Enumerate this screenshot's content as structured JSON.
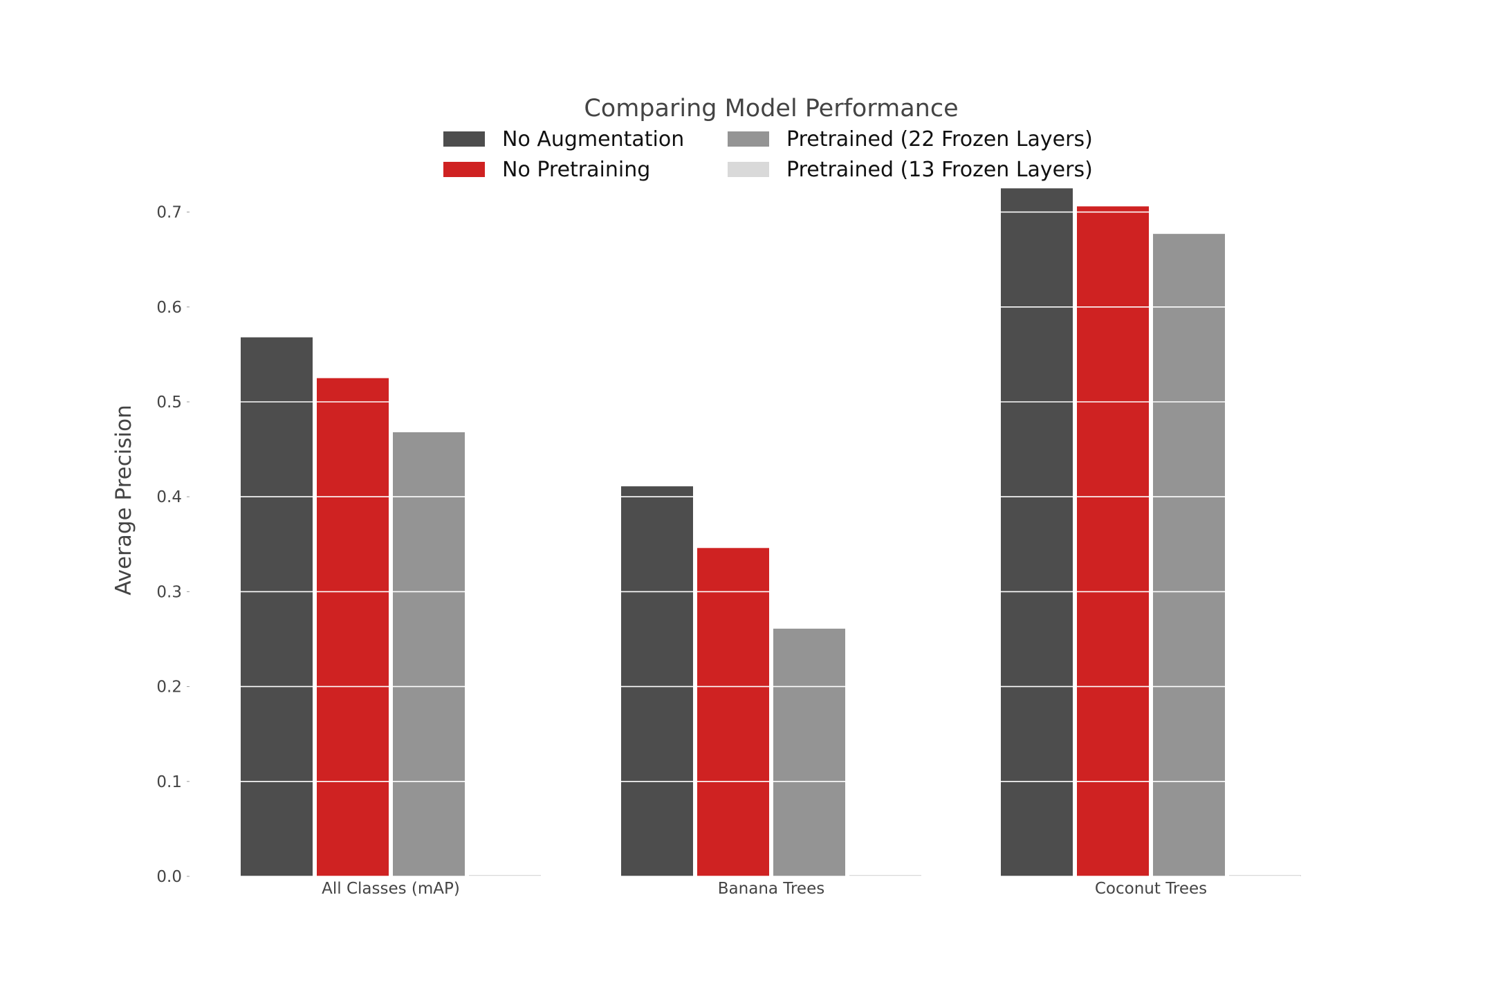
{
  "chart_data": {
    "type": "bar",
    "title": "Comparing Model Performance",
    "xlabel": "",
    "ylabel": "Average Precision",
    "ylim": [
      0,
      0.725
    ],
    "yticks": [
      "0.0",
      "0.1",
      "0.2",
      "0.3",
      "0.4",
      "0.5",
      "0.6",
      "0.7"
    ],
    "grid": "horizontal white lines over bars",
    "legend_position": "top-center",
    "categories": [
      "All Classes (mAP)",
      "Banana Trees",
      "Coconut Trees"
    ],
    "series": [
      {
        "name": "No Augmentation",
        "color": "#4d4d4d",
        "values": [
          0.568,
          0.411,
          0.725
        ]
      },
      {
        "name": "No Pretraining",
        "color": "#cf2222",
        "values": [
          0.525,
          0.346,
          0.706
        ]
      },
      {
        "name": "Pretrained (22 Frozen Layers)",
        "color": "#949494",
        "values": [
          0.468,
          0.261,
          0.677
        ]
      },
      {
        "name": "Pretrained (13 Frozen Layers)",
        "color": "#d9d9d9",
        "values": [
          0.0,
          0.0,
          0.0
        ]
      }
    ]
  }
}
